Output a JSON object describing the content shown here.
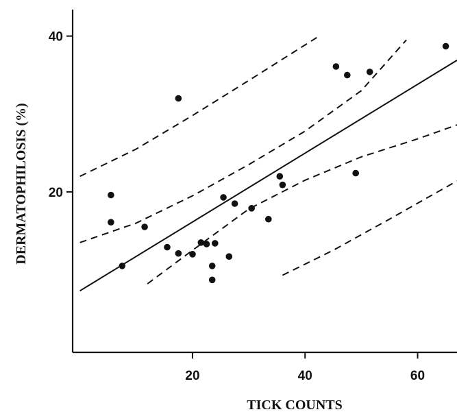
{
  "chart_data": {
    "type": "scatter",
    "title": "",
    "xlabel": "TICK COUNTS",
    "ylabel": "DERMATOPHILOSIS (%)",
    "xlim": [
      -1.3,
      67
    ],
    "ylim": [
      -0.6,
      43.4
    ],
    "x_ticks": [
      20,
      40,
      60
    ],
    "y_ticks": [
      20,
      40
    ],
    "grid": false,
    "legend": "none",
    "colors": {
      "points": "#111111",
      "lines": "#111111"
    },
    "points": [
      {
        "x": 5.5,
        "y": 19.6
      },
      {
        "x": 5.5,
        "y": 16.1
      },
      {
        "x": 7.5,
        "y": 10.5
      },
      {
        "x": 11.5,
        "y": 15.5
      },
      {
        "x": 15.5,
        "y": 12.9
      },
      {
        "x": 17.5,
        "y": 32.0
      },
      {
        "x": 17.5,
        "y": 12.1
      },
      {
        "x": 20.0,
        "y": 12.0
      },
      {
        "x": 21.5,
        "y": 13.5
      },
      {
        "x": 22.5,
        "y": 13.3
      },
      {
        "x": 23.5,
        "y": 10.5
      },
      {
        "x": 23.5,
        "y": 8.7
      },
      {
        "x": 24.0,
        "y": 13.4
      },
      {
        "x": 25.5,
        "y": 19.3
      },
      {
        "x": 26.5,
        "y": 11.7
      },
      {
        "x": 27.5,
        "y": 18.5
      },
      {
        "x": 30.5,
        "y": 17.9
      },
      {
        "x": 33.5,
        "y": 16.5
      },
      {
        "x": 35.5,
        "y": 22.0
      },
      {
        "x": 36.0,
        "y": 20.9
      },
      {
        "x": 45.5,
        "y": 36.1
      },
      {
        "x": 47.5,
        "y": 35.0
      },
      {
        "x": 49.0,
        "y": 22.4
      },
      {
        "x": 51.5,
        "y": 35.4
      },
      {
        "x": 65.0,
        "y": 38.7
      }
    ],
    "regression_line": [
      {
        "x": 0.0,
        "y": 7.3
      },
      {
        "x": 67.0,
        "y": 36.9
      }
    ],
    "confidence_band_upper": [
      {
        "x": 0.0,
        "y": 13.5
      },
      {
        "x": 10.0,
        "y": 16.0
      },
      {
        "x": 20.0,
        "y": 19.5
      },
      {
        "x": 30.0,
        "y": 23.5
      },
      {
        "x": 40.0,
        "y": 27.8
      },
      {
        "x": 50.0,
        "y": 33.0
      },
      {
        "x": 58.0,
        "y": 39.5
      }
    ],
    "confidence_band_lower": [
      {
        "x": 12.0,
        "y": 8.2
      },
      {
        "x": 20.0,
        "y": 12.5
      },
      {
        "x": 30.0,
        "y": 17.8
      },
      {
        "x": 40.0,
        "y": 21.5
      },
      {
        "x": 50.0,
        "y": 24.5
      },
      {
        "x": 60.0,
        "y": 26.8
      },
      {
        "x": 67.0,
        "y": 28.6
      }
    ],
    "prediction_band_upper": [
      {
        "x": 0.0,
        "y": 22.0
      },
      {
        "x": 10.0,
        "y": 25.5
      },
      {
        "x": 20.0,
        "y": 29.8
      },
      {
        "x": 30.0,
        "y": 34.3
      },
      {
        "x": 42.5,
        "y": 40.0
      }
    ],
    "prediction_band_lower": [
      {
        "x": 36.0,
        "y": 9.3
      },
      {
        "x": 45.0,
        "y": 12.5
      },
      {
        "x": 55.0,
        "y": 16.5
      },
      {
        "x": 67.0,
        "y": 21.4
      }
    ]
  }
}
